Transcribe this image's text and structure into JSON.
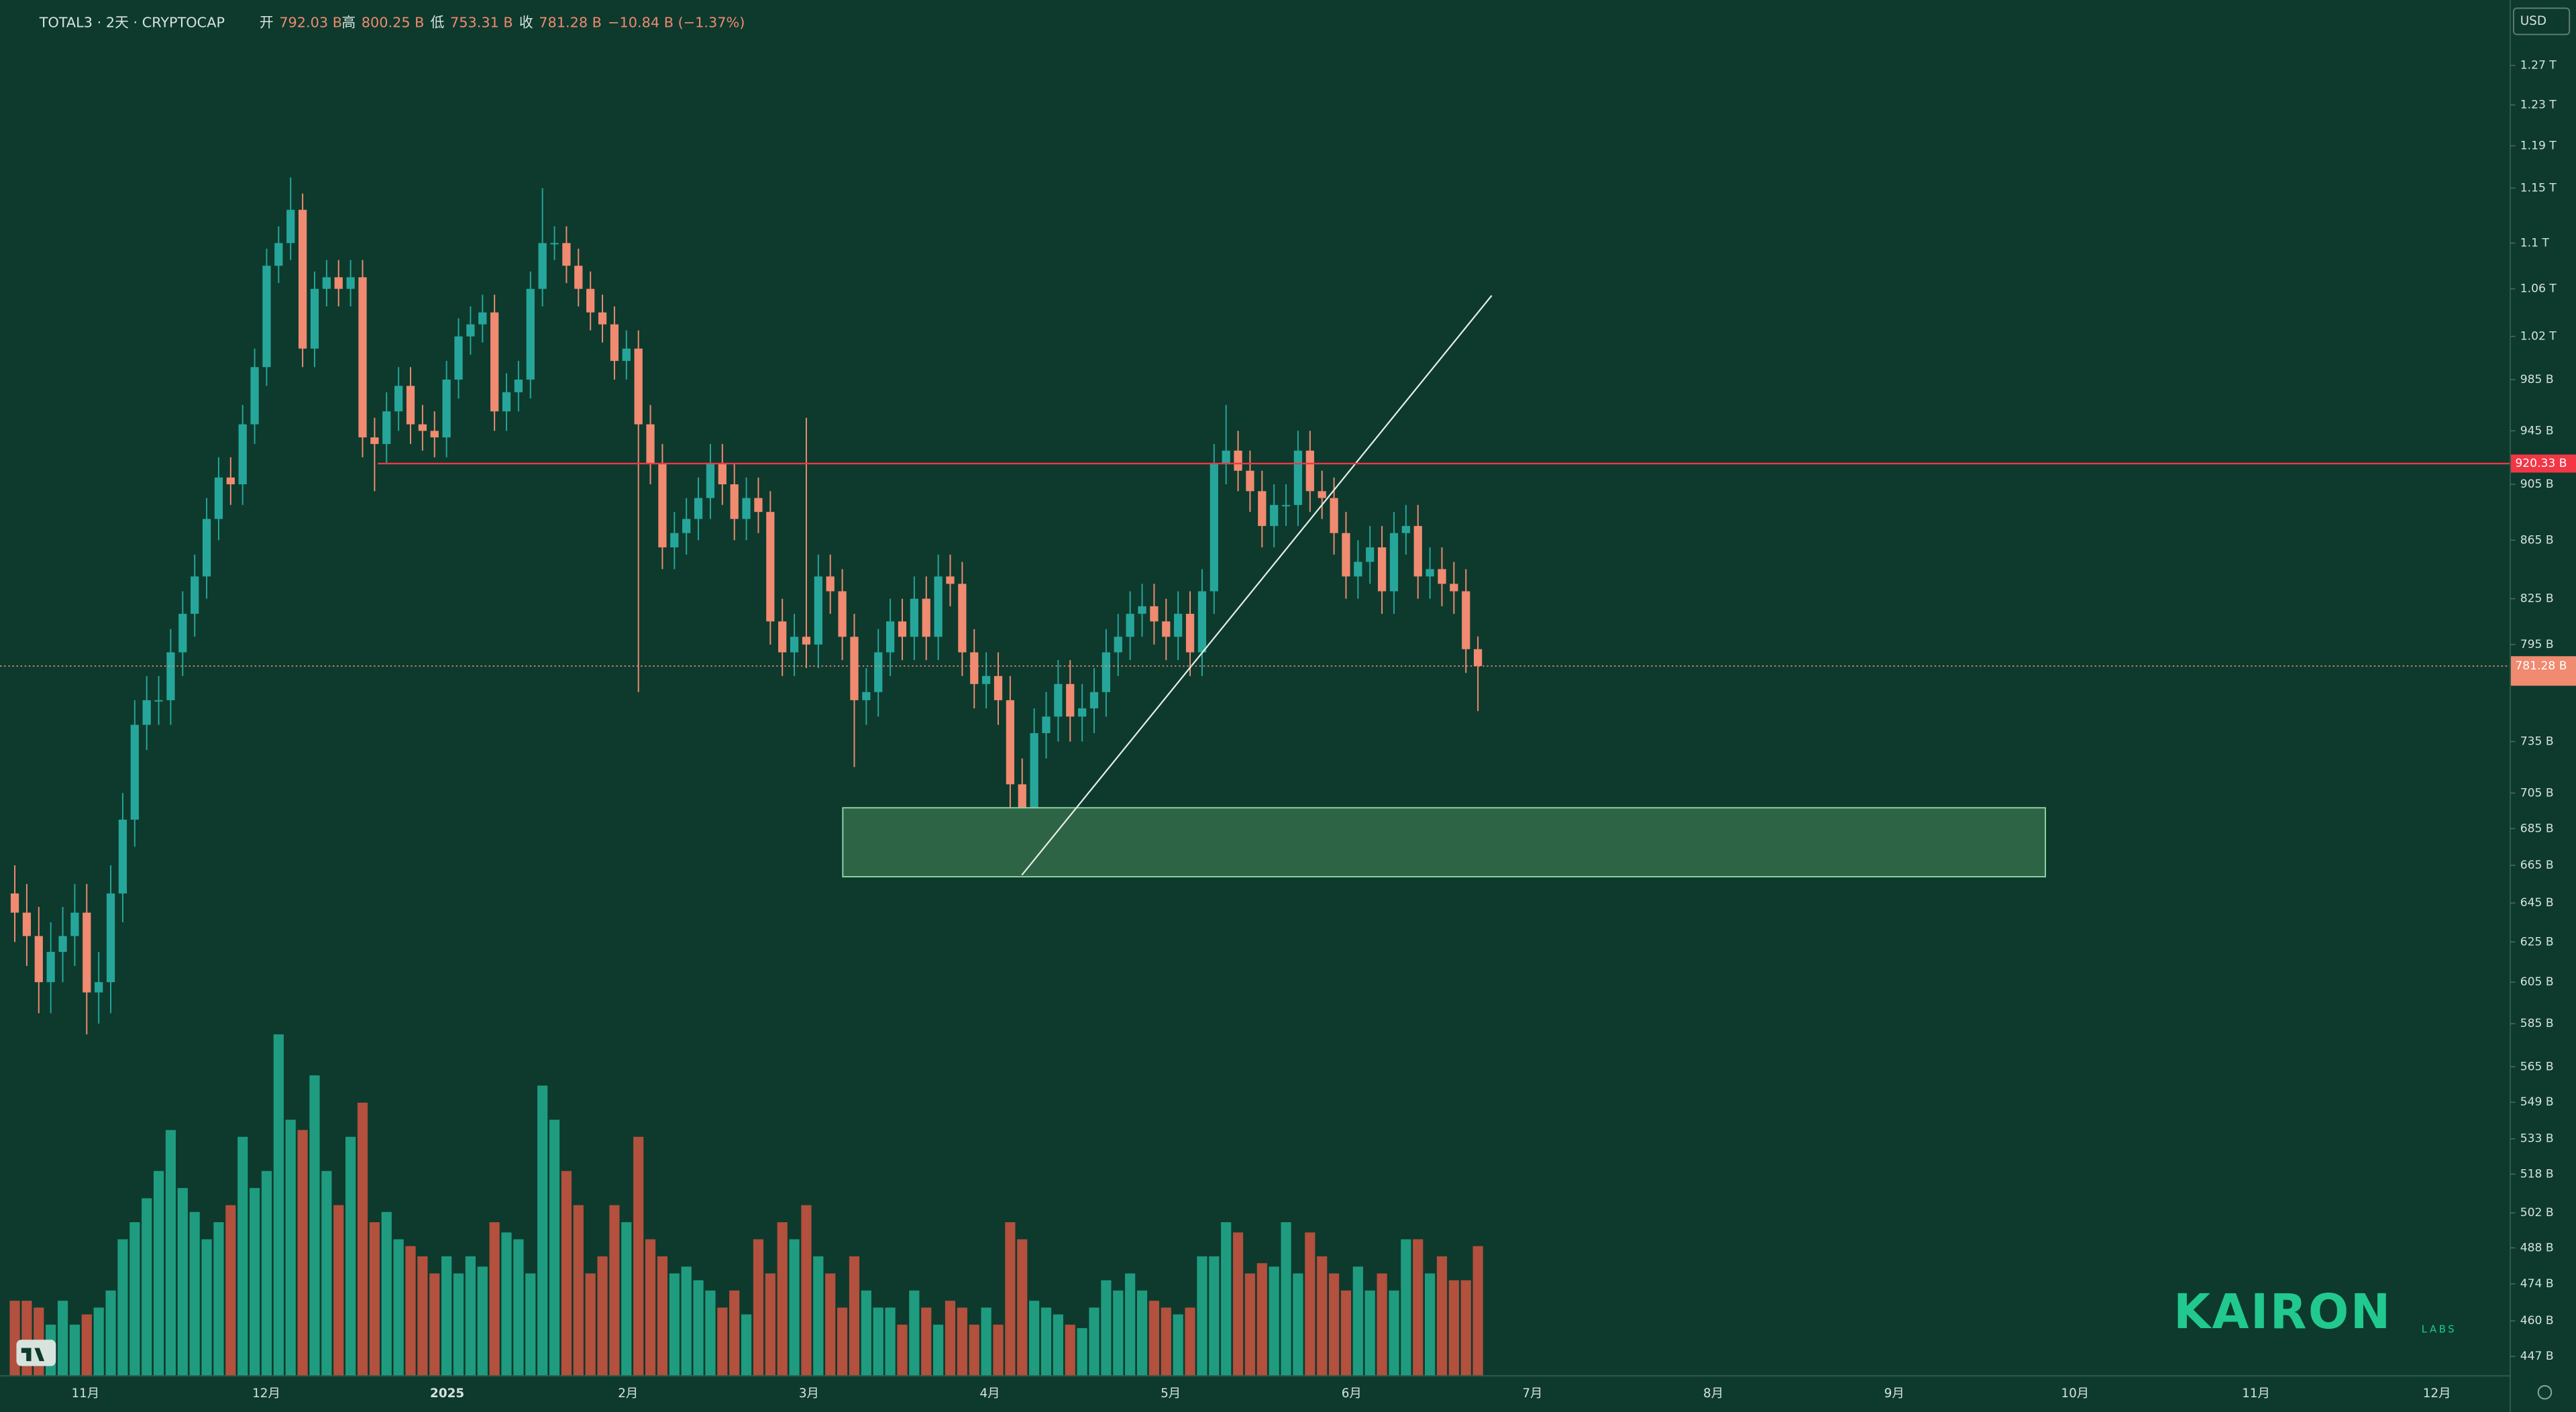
{
  "chart_data": {
    "type": "candlestick",
    "header": {
      "symbol": "TOTAL3 · 2天 · CRYPTOCAP",
      "open_label": "开",
      "open": "792.03 B",
      "high_label": "高",
      "high": "800.25 B",
      "low_label": "低",
      "low": "753.31 B",
      "close_label": "收",
      "close": "781.28 B",
      "change": "−10.84 B (−1.37%)"
    },
    "currency": "USD",
    "watermark": "KAIRON",
    "watermark_sub": "LABS",
    "log_scale": true,
    "up_color": "#26a69a",
    "down_color": "#f08a70",
    "volume_up_color": "#1f9c7f",
    "volume_down_color": "#b3503e",
    "x_labels": [
      "11月",
      "12月",
      "2025",
      "2月",
      "3月",
      "4月",
      "5月",
      "6月",
      "7月",
      "8月",
      "9月",
      "10月",
      "11月",
      "12月"
    ],
    "ylim": [
      440,
      1339
    ],
    "yticks": [
      {
        "value": 1270,
        "label": "1.27 T"
      },
      {
        "value": 1230,
        "label": "1.23 T"
      },
      {
        "value": 1190,
        "label": "1.19 T"
      },
      {
        "value": 1150,
        "label": "1.15 T"
      },
      {
        "value": 1100,
        "label": "1.1 T"
      },
      {
        "value": 1060,
        "label": "1.06 T"
      },
      {
        "value": 1020,
        "label": "1.02 T"
      },
      {
        "value": 985,
        "label": "985 B"
      },
      {
        "value": 945,
        "label": "945 B"
      },
      {
        "value": 905,
        "label": "905 B"
      },
      {
        "value": 865,
        "label": "865 B"
      },
      {
        "value": 825,
        "label": "825 B"
      },
      {
        "value": 795,
        "label": "795 B"
      },
      {
        "value": 735,
        "label": "735 B"
      },
      {
        "value": 705,
        "label": "705 B"
      },
      {
        "value": 685,
        "label": "685 B"
      },
      {
        "value": 665,
        "label": "665 B"
      },
      {
        "value": 645,
        "label": "645 B"
      },
      {
        "value": 625,
        "label": "625 B"
      },
      {
        "value": 605,
        "label": "605 B"
      },
      {
        "value": 585,
        "label": "585 B"
      },
      {
        "value": 565,
        "label": "565 B"
      },
      {
        "value": 549,
        "label": "549 B"
      },
      {
        "value": 533,
        "label": "533 B"
      },
      {
        "value": 518,
        "label": "518 B"
      },
      {
        "value": 502,
        "label": "502 B"
      },
      {
        "value": 488,
        "label": "488 B"
      },
      {
        "value": 474,
        "label": "474 B"
      },
      {
        "value": 460,
        "label": "460 B"
      },
      {
        "value": 447,
        "label": "447 B"
      }
    ],
    "hlines": [
      {
        "value": 920.33,
        "label": "920.33 B",
        "color": "#f23645"
      }
    ],
    "last_price": {
      "value": 781.28,
      "label": "781.28 B",
      "color": "#f08a70"
    },
    "open": [
      650,
      640,
      628,
      605,
      620,
      628,
      640,
      600,
      605,
      650,
      690,
      745,
      760,
      760,
      790,
      815,
      840,
      880,
      910,
      905,
      950,
      995,
      1080,
      1100,
      1130,
      1010,
      1060,
      1070,
      1060,
      1070,
      940,
      935,
      960,
      980,
      950,
      945,
      940,
      985,
      1020,
      1030,
      1040,
      960,
      975,
      985,
      1060,
      1100,
      1100,
      1080,
      1060,
      1040,
      1030,
      1000,
      1010,
      950,
      920,
      860,
      870,
      880,
      895,
      920,
      905,
      880,
      895,
      885,
      810,
      790,
      800,
      795,
      840,
      830,
      800,
      760,
      765,
      790,
      810,
      800,
      825,
      800,
      840,
      835,
      790,
      770,
      775,
      760,
      710,
      690,
      740,
      750,
      770,
      750,
      755,
      765,
      790,
      800,
      815,
      820,
      810,
      800,
      815,
      790,
      830,
      920,
      930,
      915,
      900,
      875,
      890,
      890,
      930,
      900,
      895,
      870,
      840,
      850,
      860,
      830,
      870,
      875,
      840,
      845,
      835,
      830,
      792.03
    ],
    "high": [
      665,
      655,
      643,
      635,
      643,
      655,
      655,
      620,
      665,
      705,
      760,
      775,
      775,
      805,
      830,
      855,
      895,
      925,
      925,
      965,
      1010,
      1095,
      1115,
      1160,
      1145,
      1075,
      1085,
      1085,
      1085,
      1085,
      955,
      975,
      995,
      995,
      965,
      960,
      1000,
      1035,
      1045,
      1055,
      1055,
      990,
      1000,
      1075,
      1150,
      1115,
      1115,
      1095,
      1075,
      1055,
      1045,
      1025,
      1025,
      965,
      935,
      885,
      895,
      910,
      935,
      935,
      920,
      910,
      910,
      900,
      825,
      815,
      955,
      855,
      855,
      845,
      815,
      780,
      805,
      825,
      825,
      840,
      840,
      855,
      855,
      850,
      805,
      790,
      790,
      775,
      725,
      755,
      765,
      785,
      785,
      770,
      780,
      805,
      815,
      830,
      835,
      835,
      825,
      830,
      830,
      845,
      935,
      965,
      945,
      930,
      915,
      905,
      905,
      945,
      945,
      915,
      910,
      885,
      865,
      875,
      875,
      885,
      890,
      890,
      860,
      860,
      850,
      845,
      800.25
    ],
    "low": [
      625,
      613,
      590,
      590,
      605,
      613,
      580,
      585,
      590,
      635,
      675,
      730,
      745,
      745,
      775,
      800,
      825,
      865,
      890,
      890,
      935,
      980,
      1065,
      1085,
      995,
      995,
      1045,
      1045,
      1045,
      925,
      900,
      920,
      945,
      935,
      930,
      925,
      925,
      970,
      1005,
      1015,
      945,
      945,
      960,
      970,
      1045,
      1085,
      1065,
      1045,
      1025,
      1015,
      985,
      985,
      765,
      905,
      845,
      845,
      855,
      865,
      880,
      890,
      865,
      865,
      870,
      795,
      775,
      775,
      780,
      780,
      815,
      785,
      720,
      745,
      750,
      775,
      785,
      785,
      785,
      785,
      820,
      775,
      755,
      755,
      745,
      695,
      659,
      675,
      725,
      735,
      735,
      735,
      740,
      750,
      775,
      785,
      800,
      795,
      785,
      785,
      775,
      775,
      815,
      905,
      900,
      885,
      860,
      860,
      875,
      875,
      885,
      880,
      855,
      825,
      825,
      835,
      815,
      815,
      855,
      825,
      825,
      820,
      815,
      777,
      753.31
    ],
    "close": [
      640,
      628,
      605,
      620,
      628,
      640,
      600,
      605,
      650,
      690,
      745,
      760,
      760,
      790,
      815,
      840,
      880,
      910,
      905,
      950,
      995,
      1080,
      1100,
      1130,
      1010,
      1060,
      1070,
      1060,
      1070,
      940,
      935,
      960,
      980,
      950,
      945,
      940,
      985,
      1020,
      1030,
      1040,
      960,
      975,
      985,
      1060,
      1100,
      1100,
      1080,
      1060,
      1040,
      1030,
      1000,
      1010,
      950,
      920,
      860,
      870,
      880,
      895,
      920,
      905,
      880,
      895,
      885,
      810,
      790,
      800,
      795,
      840,
      830,
      800,
      760,
      765,
      790,
      810,
      800,
      825,
      800,
      840,
      835,
      790,
      770,
      775,
      760,
      710,
      690,
      740,
      750,
      770,
      750,
      755,
      765,
      790,
      800,
      815,
      820,
      810,
      800,
      815,
      790,
      830,
      920,
      930,
      915,
      900,
      875,
      890,
      890,
      930,
      900,
      895,
      870,
      840,
      850,
      860,
      830,
      870,
      875,
      840,
      845,
      835,
      830,
      792.03,
      781.28
    ],
    "volume": [
      22,
      22,
      20,
      15,
      22,
      15,
      18,
      20,
      25,
      40,
      45,
      52,
      60,
      72,
      55,
      48,
      40,
      45,
      50,
      70,
      55,
      60,
      100,
      75,
      72,
      88,
      60,
      50,
      70,
      80,
      45,
      48,
      40,
      38,
      35,
      30,
      35,
      30,
      35,
      32,
      45,
      42,
      40,
      30,
      85,
      75,
      60,
      50,
      30,
      35,
      50,
      45,
      70,
      40,
      35,
      30,
      32,
      28,
      25,
      20,
      25,
      18,
      40,
      30,
      45,
      40,
      50,
      35,
      30,
      20,
      35,
      25,
      20,
      20,
      15,
      25,
      20,
      15,
      22,
      20,
      15,
      20,
      15,
      45,
      40,
      22,
      20,
      18,
      15,
      14,
      20,
      28,
      25,
      30,
      25,
      22,
      20,
      18,
      20,
      35,
      35,
      45,
      42,
      30,
      33,
      32,
      45,
      30,
      42,
      35,
      30,
      25,
      32,
      25,
      30,
      25,
      40,
      40,
      30,
      35,
      28,
      28,
      38
    ]
  }
}
